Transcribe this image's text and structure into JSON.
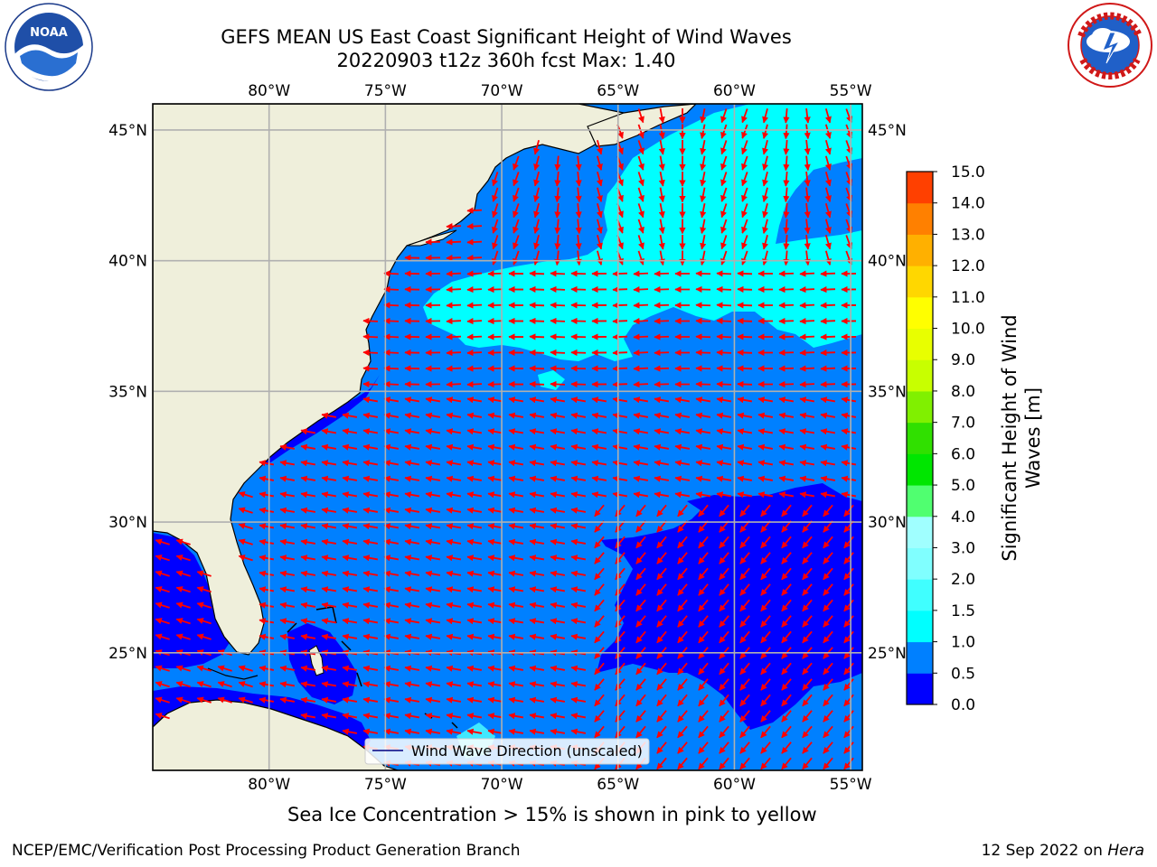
{
  "header": {
    "title_line1": "GEFS MEAN US East Coast Significant Height of Wind Waves",
    "title_line2": "20220903 t12z 360h fcst   Max: 1.40"
  },
  "logos": {
    "left": {
      "name": "noaa-logo",
      "text": "NOAA",
      "ring_text": "NATIONAL OCEANIC AND ATMOSPHERIC ADMINISTRATION · U.S. DEPARTMENT OF COMMERCE"
    },
    "right": {
      "name": "nws-logo",
      "ring_text": "NATIONAL WEATHER SERVICE"
    }
  },
  "map": {
    "projection": "plate-carree",
    "lon_range": [
      -85,
      -54.5
    ],
    "lat_range": [
      20.5,
      46
    ],
    "lon_ticks": [
      "80°W",
      "75°W",
      "70°W",
      "65°W",
      "60°W",
      "55°W"
    ],
    "lat_ticks": [
      "45°N",
      "40°N",
      "35°N",
      "30°N",
      "25°N"
    ],
    "grid": true,
    "colors": {
      "land": "#efefdb",
      "ocean_low": "#0000ff",
      "ocean_mid": "#0080ff",
      "ocean_high": "#00ffff",
      "ocean_light": "#40e8ff",
      "arrows": "#ff0000",
      "grid": "#b0b0b0"
    },
    "legend": {
      "label": "Wind Wave Direction (unscaled)",
      "placement": "lower center"
    }
  },
  "colorbar": {
    "label_line1": "Significant Height of Wind",
    "label_line2": "Waves [m]",
    "ticks": [
      "0.0",
      "0.5",
      "1.0",
      "1.5",
      "2.0",
      "3.0",
      "4.0",
      "5.0",
      "6.0",
      "7.0",
      "8.0",
      "9.0",
      "10.0",
      "11.0",
      "12.0",
      "13.0",
      "14.0",
      "15.0"
    ],
    "colors": [
      "#0000ff",
      "#0080ff",
      "#00ffff",
      "#40ffff",
      "#80ffff",
      "#a0ffff",
      "#50ff70",
      "#00e600",
      "#30e000",
      "#80f000",
      "#c8ff00",
      "#e8ff00",
      "#ffff00",
      "#ffd700",
      "#ffb000",
      "#ff8000",
      "#ff4000",
      "#ff0000"
    ]
  },
  "chart_data": {
    "type": "heatmap",
    "title": "GEFS MEAN US East Coast Significant Height of Wind Waves",
    "subtitle": "20220903 t12z 360h fcst   Max: 1.40",
    "variable": "Significant Height of Wind Waves [m]",
    "max_value": 1.4,
    "levels": [
      0.0,
      0.5,
      1.0,
      1.5,
      2.0,
      3.0,
      4.0,
      5.0,
      6.0,
      7.0,
      8.0,
      9.0,
      10.0,
      11.0,
      12.0,
      13.0,
      14.0,
      15.0
    ],
    "xlim": [
      -85,
      -54.5
    ],
    "ylim": [
      20.5,
      46
    ],
    "regions": [
      {
        "level": "1.0-1.5",
        "description_lonlat_polygon": [
          [
            -67,
            44
          ],
          [
            -57,
            46
          ],
          [
            -55,
            46
          ],
          [
            -55,
            41
          ],
          [
            -58,
            40.5
          ],
          [
            -62,
            40
          ],
          [
            -72,
            39.5
          ],
          [
            -73,
            38
          ],
          [
            -68,
            37
          ],
          [
            -64,
            36.5
          ],
          [
            -57,
            37
          ],
          [
            -55,
            38
          ],
          [
            -55,
            40
          ]
        ]
      },
      {
        "level": "0.0-0.5",
        "description_lonlat_polygon": [
          [
            -64,
            28.5
          ],
          [
            -61,
            30
          ],
          [
            -57,
            31
          ],
          [
            -55,
            31
          ],
          [
            -55,
            23
          ],
          [
            -58,
            22
          ],
          [
            -60,
            21.5
          ],
          [
            -63,
            22.5
          ],
          [
            -64,
            24
          ],
          [
            -65,
            26
          ],
          [
            -65,
            28
          ]
        ]
      },
      {
        "level": "0.5-1.0",
        "description": "rest of open ocean"
      }
    ]
  },
  "footer": {
    "caption": "Sea Ice Concentration > 15% is shown in pink to yellow",
    "left": "NCEP/EMC/Verification Post Processing Product Generation Branch",
    "right_prefix": "12 Sep 2022 on ",
    "right_host": "Hera"
  }
}
